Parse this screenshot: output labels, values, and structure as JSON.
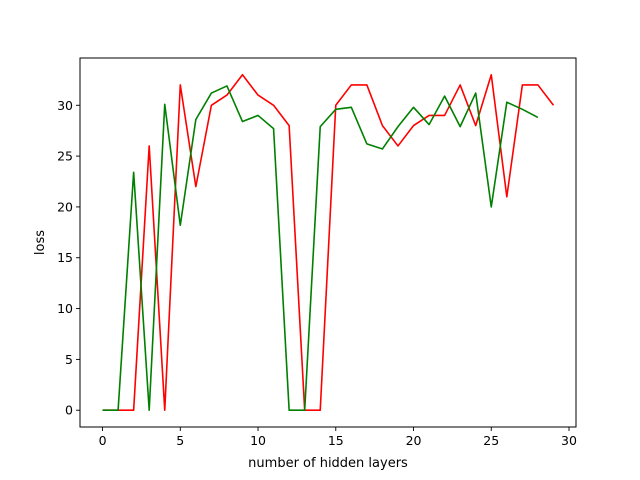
{
  "chart_data": {
    "type": "line",
    "title": "",
    "xlabel": "number of hidden layers",
    "ylabel": "loss",
    "xlim": [
      -1.45,
      30.45
    ],
    "ylim": [
      -1.65,
      34.65
    ],
    "xticks": [
      0,
      5,
      10,
      15,
      20,
      25,
      30
    ],
    "yticks": [
      0,
      5,
      10,
      15,
      20,
      25,
      30
    ],
    "grid": false,
    "legend": "none",
    "series": [
      {
        "color": "#ff0000",
        "x": [
          0,
          1,
          2,
          3,
          4,
          5,
          6,
          7,
          8,
          9,
          10,
          11,
          12,
          13,
          14,
          15,
          16,
          17,
          18,
          19,
          20,
          21,
          22,
          23,
          24,
          25,
          26,
          27,
          28,
          29
        ],
        "values": [
          0,
          0,
          0,
          26,
          0,
          32,
          22,
          30,
          31,
          33,
          31,
          30,
          28,
          0,
          0,
          30,
          32,
          32,
          28,
          26,
          28,
          29,
          29,
          32,
          28,
          33,
          21,
          32,
          32,
          30
        ]
      },
      {
        "color": "#008000",
        "x": [
          0,
          1,
          2,
          3,
          4,
          5,
          6,
          7,
          8,
          9,
          10,
          11,
          12,
          13,
          14,
          15,
          16,
          17,
          18,
          19,
          20,
          21,
          22,
          23,
          24,
          25,
          26,
          27,
          28
        ],
        "values": [
          0,
          0,
          23.4,
          0,
          30.1,
          18.2,
          28.6,
          31.2,
          31.9,
          28.4,
          29,
          27.7,
          0,
          0,
          27.9,
          29.6,
          29.8,
          26.2,
          25.7,
          27.9,
          29.8,
          28.1,
          30.9,
          27.9,
          31.2,
          20,
          30.3,
          29.6,
          28.8
        ]
      }
    ]
  }
}
